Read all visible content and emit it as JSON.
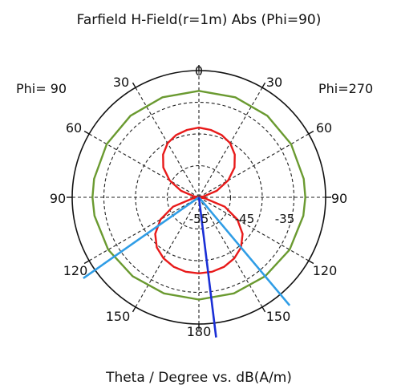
{
  "chart_data": {
    "type": "polar",
    "title": "Farfield H-Field(r=1m) Abs (Phi=90)",
    "xlabel": "Theta / Degree vs. dB(A/m)",
    "left_label": "Phi= 90",
    "right_label": "Phi=270",
    "angle_ticks": {
      "top": "0",
      "upper_30_left": "30",
      "upper_30_right": "30",
      "upper_60_left": "60",
      "upper_60_right": "60",
      "left_90": "90",
      "right_90": "90",
      "lower_120_left": "120",
      "lower_120_right": "120",
      "lower_150_left": "150",
      "lower_150_right": "150",
      "bottom": "180"
    },
    "radial_ticks": [
      "-55",
      "-45",
      "-35"
    ],
    "radial_range_db": [
      -60,
      -30
    ],
    "grid": true,
    "series": [
      {
        "color": "#e81a1a",
        "theta_deg": [
          0,
          10,
          20,
          30,
          40,
          50,
          60,
          70,
          80,
          90,
          100,
          110,
          120,
          130,
          140,
          150,
          160,
          170,
          180
        ],
        "values_db": [
          -43.5,
          -43.8,
          -44.3,
          -45.2,
          -46.8,
          -49.0,
          -52.0,
          -55.5,
          -59.0,
          -60.0,
          -58.5,
          -53.5,
          -49.5,
          -46.5,
          -44.5,
          -43.3,
          -42.5,
          -42.1,
          -42.0
        ]
      },
      {
        "color": "#6a9a30",
        "theta_deg": [
          0,
          20,
          40,
          60,
          80,
          90,
          100,
          120,
          140,
          160,
          180
        ],
        "values_db": [
          -34.8,
          -34.8,
          -34.8,
          -34.8,
          -34.8,
          -34.8,
          -34.9,
          -35.2,
          -35.6,
          -35.8,
          -35.8
        ]
      }
    ],
    "markers": [
      {
        "color": "#2f9de6",
        "theta_deg": 140
      },
      {
        "color": "#2f9de6",
        "theta_deg": 235
      },
      {
        "color": "#1a2fd6",
        "theta_deg": 173
      }
    ]
  }
}
